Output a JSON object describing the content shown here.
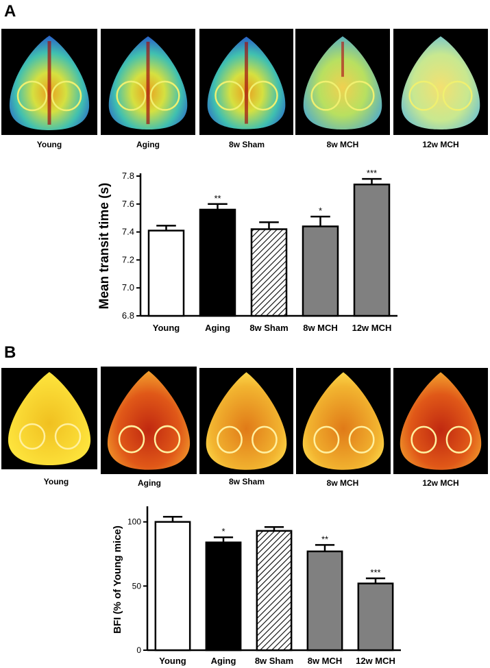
{
  "panels": {
    "a": {
      "letter": "A",
      "image_labels": [
        "Young",
        "Aging",
        "8w Sham",
        "8w MCH",
        "12w MCH"
      ]
    },
    "b": {
      "letter": "B",
      "image_labels": [
        "Young",
        "Aging",
        "8w Sham",
        "8w MCH",
        "12w MCH"
      ]
    }
  },
  "chart_data": [
    {
      "type": "bar",
      "title": "",
      "xlabel": "",
      "ylabel": "Mean transit time (s)",
      "categories": [
        "Young",
        "Aging",
        "8w Sham",
        "8w MCH",
        "12w MCH"
      ],
      "values": [
        7.41,
        7.56,
        7.42,
        7.44,
        7.74
      ],
      "errors": [
        0.035,
        0.04,
        0.05,
        0.07,
        0.04
      ],
      "significance": [
        "",
        "**",
        "",
        "*",
        "***"
      ],
      "fills": [
        "white",
        "black",
        "hatched",
        "gray",
        "gray"
      ],
      "ylim": [
        6.8,
        7.8
      ],
      "yticks": [
        "6.8",
        "7.0",
        "7.2",
        "7.4",
        "7.6",
        "7.8"
      ],
      "grid": false
    },
    {
      "type": "bar",
      "title": "",
      "xlabel": "",
      "ylabel": "BFI (% of Young mice)",
      "categories": [
        "Young",
        "Aging",
        "8w Sham",
        "8w MCH",
        "12w MCH"
      ],
      "values": [
        100,
        84,
        93,
        77,
        52
      ],
      "errors": [
        4,
        4,
        3,
        5,
        4
      ],
      "significance": [
        "",
        "*",
        "",
        "**",
        "***"
      ],
      "fills": [
        "white",
        "black",
        "hatched",
        "gray",
        "gray"
      ],
      "ylim": [
        0,
        110
      ],
      "yticks": [
        "0",
        "50",
        "100"
      ],
      "grid": false
    }
  ],
  "colors": {
    "bar_black": "#000000",
    "bar_gray": "#808080",
    "bar_white": "#ffffff"
  }
}
